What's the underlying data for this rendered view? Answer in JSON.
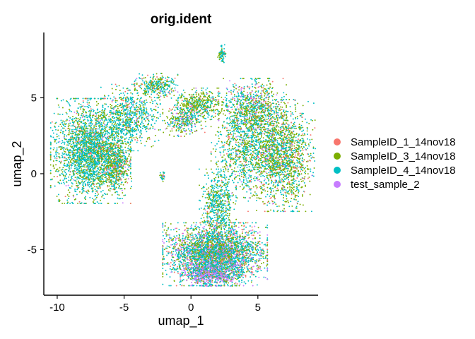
{
  "chart_data": {
    "type": "scatter",
    "title": "orig.ident",
    "xlabel": "umap_1",
    "ylabel": "umap_2",
    "xlim": [
      -11,
      9.5
    ],
    "ylim": [
      -8,
      9.3
    ],
    "x_ticks": [
      -10,
      -5,
      0,
      5
    ],
    "y_ticks": [
      -5,
      0,
      5
    ],
    "grid": false,
    "legend_position": "right",
    "series": [
      {
        "name": "SampleID_1_14nov18",
        "color": "#F8766D"
      },
      {
        "name": "SampleID_3_14nov18",
        "color": "#7CAE00"
      },
      {
        "name": "SampleID_4_14nov18",
        "color": "#00BFC4"
      },
      {
        "name": "test_sample_2",
        "color": "#C77CFF"
      }
    ],
    "clusters": [
      {
        "cx": -7.5,
        "cy": 1.5,
        "sx": 1.3,
        "sy": 1.5,
        "n": 2600,
        "mix": [
          0.06,
          0.34,
          0.58,
          0.02
        ]
      },
      {
        "cx": -5.6,
        "cy": 0.5,
        "sx": 0.5,
        "sy": 0.65,
        "n": 450,
        "mix": [
          0.1,
          0.5,
          0.38,
          0.02
        ]
      },
      {
        "cx": -4.6,
        "cy": 3.7,
        "sx": 1.0,
        "sy": 0.95,
        "n": 750,
        "mix": [
          0.06,
          0.32,
          0.6,
          0.02
        ]
      },
      {
        "cx": -2.6,
        "cy": 5.8,
        "sx": 0.7,
        "sy": 0.35,
        "n": 300,
        "mix": [
          0.06,
          0.45,
          0.47,
          0.02
        ]
      },
      {
        "cx": 0.6,
        "cy": 4.6,
        "sx": 0.9,
        "sy": 0.45,
        "n": 450,
        "mix": [
          0.05,
          0.6,
          0.32,
          0.03
        ]
      },
      {
        "cx": -0.5,
        "cy": 3.5,
        "sx": 0.7,
        "sy": 0.45,
        "n": 320,
        "mix": [
          0.06,
          0.45,
          0.34,
          0.15
        ]
      },
      {
        "cx": 2.3,
        "cy": 7.8,
        "sx": 0.13,
        "sy": 0.3,
        "n": 70,
        "mix": [
          0.05,
          0.35,
          0.6,
          0.0
        ]
      },
      {
        "cx": 4.6,
        "cy": 4.2,
        "sx": 1.1,
        "sy": 0.9,
        "n": 900,
        "mix": [
          0.1,
          0.42,
          0.4,
          0.08
        ]
      },
      {
        "cx": 6.7,
        "cy": 1.2,
        "sx": 1.2,
        "sy": 1.6,
        "n": 1800,
        "mix": [
          0.1,
          0.5,
          0.36,
          0.04
        ]
      },
      {
        "cx": 3.8,
        "cy": 1.4,
        "sx": 1.0,
        "sy": 1.3,
        "n": 700,
        "mix": [
          0.06,
          0.38,
          0.52,
          0.04
        ]
      },
      {
        "cx": 2.0,
        "cy": -2.0,
        "sx": 0.6,
        "sy": 1.0,
        "n": 550,
        "mix": [
          0.05,
          0.35,
          0.58,
          0.02
        ]
      },
      {
        "cx": 1.8,
        "cy": -5.3,
        "sx": 1.7,
        "sy": 0.9,
        "n": 3400,
        "mix": [
          0.1,
          0.28,
          0.48,
          0.14
        ]
      },
      {
        "cx": 1.5,
        "cy": -6.6,
        "sx": 1.0,
        "sy": 0.35,
        "n": 600,
        "mix": [
          0.05,
          0.1,
          0.35,
          0.5
        ]
      },
      {
        "cx": -2.1,
        "cy": -0.2,
        "sx": 0.1,
        "sy": 0.15,
        "n": 30,
        "mix": [
          0.1,
          0.3,
          0.5,
          0.1
        ]
      }
    ]
  }
}
